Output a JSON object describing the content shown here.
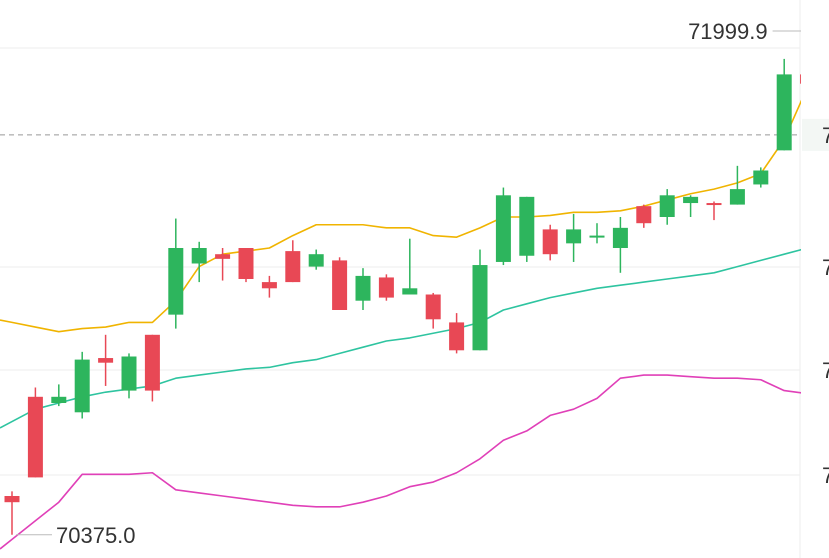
{
  "chart_data": {
    "type": "candlestick",
    "annotations": {
      "high_label": "71999.9",
      "low_label": "70375.0"
    },
    "axis_labels_cropped": [
      "7",
      "7",
      "7",
      "7"
    ],
    "colors": {
      "up": "#2db55d",
      "down": "#e84855",
      "ma_fast": "#f0b400",
      "ma_slow": "#2ec4a0",
      "band_lower": "#e040b8",
      "grid": "#eeeeee",
      "current_price_line": "#999999"
    },
    "grid": true,
    "candles": [
      {
        "open": 70500,
        "close": 70480,
        "high": 70515,
        "low": 70375
      },
      {
        "open": 70820,
        "close": 70560,
        "high": 70850,
        "low": 70560
      },
      {
        "open": 70800,
        "close": 70820,
        "high": 70860,
        "low": 70790
      },
      {
        "open": 70770,
        "close": 70940,
        "high": 70965,
        "low": 70750
      },
      {
        "open": 70945,
        "close": 70930,
        "high": 71020,
        "low": 70855
      },
      {
        "open": 70840,
        "close": 70950,
        "high": 70960,
        "low": 70815
      },
      {
        "open": 71020,
        "close": 70840,
        "high": 71020,
        "low": 70805
      },
      {
        "open": 71085,
        "close": 71300,
        "high": 71395,
        "low": 71040
      },
      {
        "open": 71250,
        "close": 71300,
        "high": 71320,
        "low": 71190
      },
      {
        "open": 71280,
        "close": 71265,
        "high": 71300,
        "low": 71195
      },
      {
        "open": 71300,
        "close": 71200,
        "high": 71300,
        "low": 71190
      },
      {
        "open": 71190,
        "close": 71170,
        "high": 71210,
        "low": 71140
      },
      {
        "open": 71290,
        "close": 71190,
        "high": 71325,
        "low": 71190
      },
      {
        "open": 71240,
        "close": 71280,
        "high": 71295,
        "low": 71230
      },
      {
        "open": 71260,
        "close": 71100,
        "high": 71270,
        "low": 71100
      },
      {
        "open": 71130,
        "close": 71210,
        "high": 71235,
        "low": 71100
      },
      {
        "open": 71205,
        "close": 71140,
        "high": 71215,
        "low": 71130
      },
      {
        "open": 71150,
        "close": 71170,
        "high": 71330,
        "low": 71155
      },
      {
        "open": 71150,
        "close": 71070,
        "high": 71155,
        "low": 71040
      },
      {
        "open": 71060,
        "close": 70970,
        "high": 71090,
        "low": 70960
      },
      {
        "open": 70970,
        "close": 71245,
        "high": 71295,
        "low": 70970
      },
      {
        "open": 71255,
        "close": 71470,
        "high": 71495,
        "low": 71245
      },
      {
        "open": 71275,
        "close": 71465,
        "high": 71465,
        "low": 71255
      },
      {
        "open": 71360,
        "close": 71280,
        "high": 71375,
        "low": 71260
      },
      {
        "open": 71315,
        "close": 71360,
        "high": 71410,
        "low": 71255
      },
      {
        "open": 71335,
        "close": 71340,
        "high": 71380,
        "low": 71315
      },
      {
        "open": 71300,
        "close": 71365,
        "high": 71400,
        "low": 71220
      },
      {
        "open": 71435,
        "close": 71380,
        "high": 71440,
        "low": 71365
      },
      {
        "open": 71400,
        "close": 71470,
        "high": 71490,
        "low": 71375
      },
      {
        "open": 71445,
        "close": 71465,
        "high": 71470,
        "low": 71400
      },
      {
        "open": 71445,
        "close": 71440,
        "high": 71450,
        "low": 71390
      },
      {
        "open": 71440,
        "close": 71490,
        "high": 71565,
        "low": 71440
      },
      {
        "open": 71505,
        "close": 71550,
        "high": 71560,
        "low": 71495
      },
      {
        "open": 71615,
        "close": 71860,
        "high": 71910,
        "low": 71615
      },
      {
        "open": 71860,
        "close": 71830,
        "high": 71999.9,
        "low": 71810
      }
    ],
    "ma_fast": [
      71060,
      71045,
      71030,
      71040,
      71045,
      71060,
      71060,
      71130,
      71240,
      71280,
      71290,
      71300,
      71340,
      71375,
      71375,
      71375,
      71365,
      71365,
      71340,
      71335,
      71365,
      71400,
      71400,
      71405,
      71415,
      71415,
      71420,
      71435,
      71455,
      71475,
      71490,
      71510,
      71540,
      71650,
      71820
    ],
    "ma_slow": [
      70740,
      70780,
      70800,
      70820,
      70835,
      70845,
      70855,
      70880,
      70890,
      70900,
      70910,
      70915,
      70930,
      70940,
      70960,
      70980,
      71000,
      71010,
      71025,
      71040,
      71060,
      71100,
      71120,
      71140,
      71155,
      71170,
      71180,
      71190,
      71200,
      71210,
      71220,
      71240,
      71260,
      71280,
      71300
    ],
    "band_lower": [
      70360,
      70420,
      70480,
      70570,
      70570,
      70570,
      70575,
      70520,
      70510,
      70500,
      70490,
      70480,
      70470,
      70465,
      70465,
      70480,
      70500,
      70530,
      70545,
      70575,
      70620,
      70680,
      70710,
      70760,
      70780,
      70815,
      70880,
      70890,
      70890,
      70885,
      70880,
      70880,
      70875,
      70840,
      70830
    ],
    "y_range": [
      70300,
      72100
    ],
    "current_price": 71665
  }
}
